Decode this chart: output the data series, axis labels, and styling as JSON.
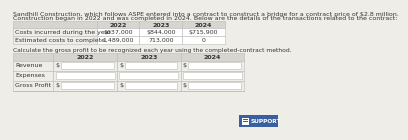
{
  "title_line1": "Sandhill Construction, which follows ASPE entered into a contract to construct a bridge for a contract price of $2.8 million.",
  "title_line2": "Construction began in 2022 and was completed in 2024. Below are the details of the transactions related to the contract:",
  "table1_headers": [
    "",
    "2022",
    "2023",
    "2024"
  ],
  "table1_rows": [
    [
      "Costs incurred during the year",
      "$637,000",
      "$844,000",
      "$715,900"
    ],
    [
      "Estimated costs to complete",
      "1,489,000",
      "713,000",
      "0"
    ]
  ],
  "instruction": "Calculate the gross profit to be recognized each year using the completed-contract method.",
  "table2_headers": [
    "",
    "2022",
    "2023",
    "2024"
  ],
  "table2_row_labels": [
    "Revenue",
    "Expenses",
    "Gross Profit"
  ],
  "table2_has_dollar": [
    true,
    false,
    true
  ],
  "bg_color": "#eeede8",
  "header_bg": "#d6d5d0",
  "white": "#ffffff",
  "text_color": "#333333",
  "border_color": "#bbbbbb",
  "support_bg": "#3a5fa0",
  "support_icon_bg": "#ffffff",
  "support_text": "SUPPORT",
  "title_fs": 4.5,
  "table_fs": 4.5,
  "instr_fs": 4.3
}
